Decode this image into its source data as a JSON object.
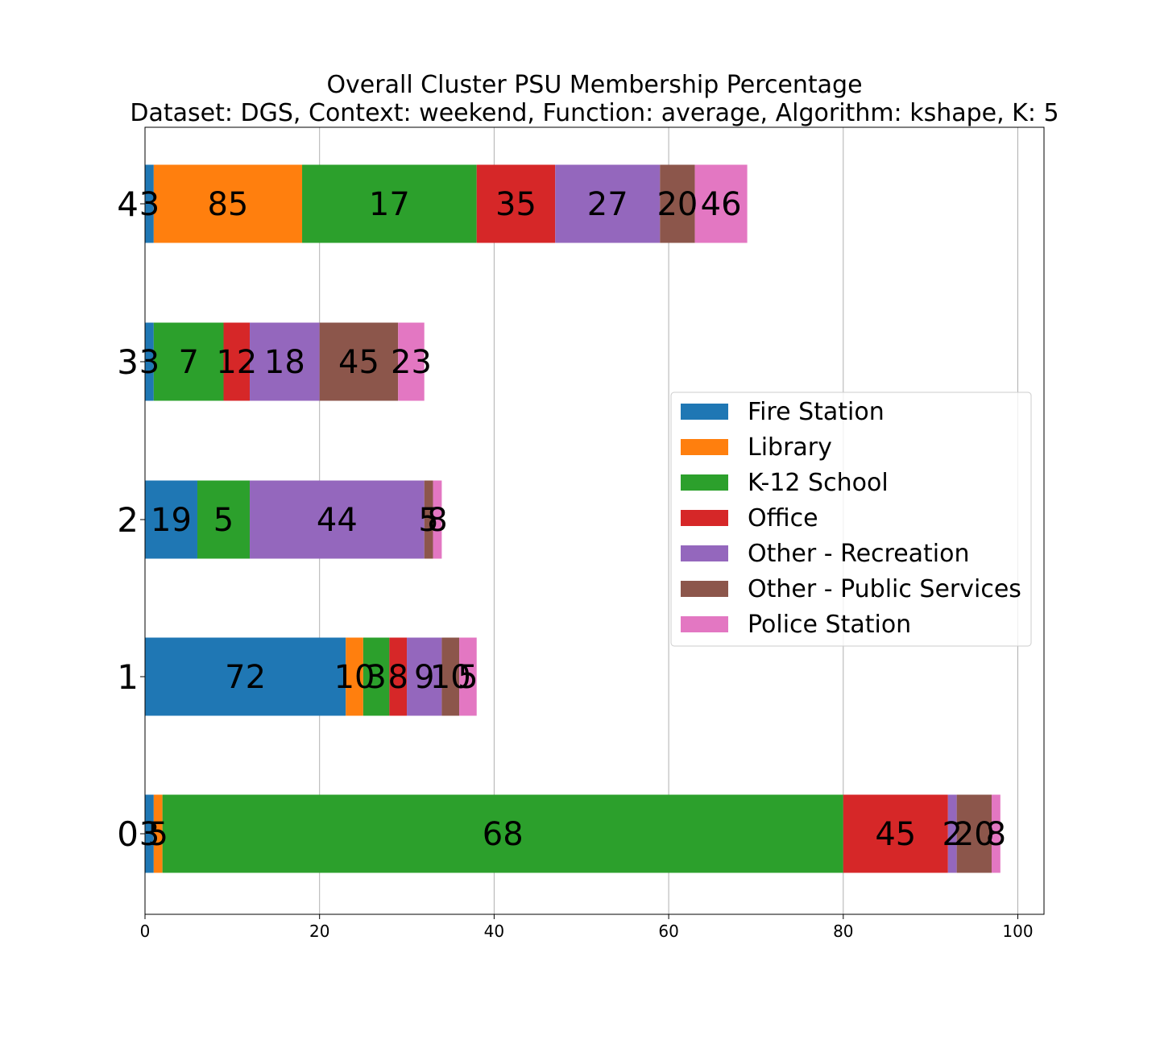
{
  "chart_data": {
    "type": "bar",
    "orientation": "horizontal",
    "stacked": true,
    "title": "Overall Cluster  PSU Membership Percentage",
    "subtitle": "Dataset: DGS, Context: weekend, Function: average, Algorithm: kshape, K: 5",
    "xlabel": "",
    "ylabel": "",
    "xlim": [
      0,
      103
    ],
    "xticks": [
      "0",
      "20",
      "40",
      "60",
      "80",
      "100"
    ],
    "grid": "x",
    "legend_position": "right",
    "categories": [
      "0",
      "1",
      "2",
      "3",
      "4"
    ],
    "series": [
      {
        "name": "Fire Station",
        "color": "#1f77b4",
        "values": [
          1,
          23,
          6,
          1,
          1
        ],
        "labels": [
          "3",
          "72",
          "19",
          "3",
          "3"
        ]
      },
      {
        "name": "Library",
        "color": "#ff7f0e",
        "values": [
          1,
          2,
          0,
          0,
          17
        ],
        "labels": [
          "5",
          "10",
          "",
          "",
          "85"
        ]
      },
      {
        "name": "K-12 School",
        "color": "#2ca02c",
        "values": [
          78,
          3,
          6,
          8,
          20
        ],
        "labels": [
          "68",
          "3",
          "5",
          "7",
          "17"
        ]
      },
      {
        "name": "Office",
        "color": "#d62728",
        "values": [
          12,
          2,
          0,
          3,
          9
        ],
        "labels": [
          "45",
          "8",
          "",
          "12",
          "35"
        ]
      },
      {
        "name": "Other - Recreation",
        "color": "#9467bd",
        "values": [
          1,
          4,
          20,
          8,
          12
        ],
        "labels": [
          "2",
          "9",
          "44",
          "18",
          "27"
        ]
      },
      {
        "name": "Other - Public Services",
        "color": "#8c564b",
        "values": [
          4,
          2,
          1,
          9,
          4
        ],
        "labels": [
          "20",
          "10",
          "5",
          "45",
          "20"
        ]
      },
      {
        "name": "Police Station",
        "color": "#e377c2",
        "values": [
          1,
          2,
          1,
          3,
          6
        ],
        "labels": [
          "8",
          "5",
          "8",
          "23",
          "46"
        ]
      }
    ]
  }
}
